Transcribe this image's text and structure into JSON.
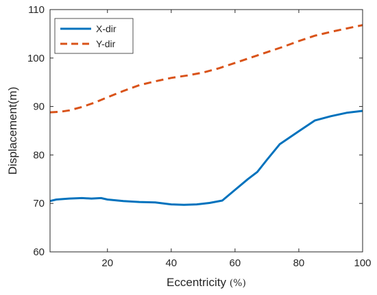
{
  "chart_data": {
    "type": "line",
    "xlabel": "Eccentricity",
    "xlabel_unit": "(%)",
    "ylabel": "Displacement(m)",
    "xlim": [
      2,
      100
    ],
    "ylim": [
      60,
      110
    ],
    "xticks": [
      20,
      40,
      60,
      80,
      100
    ],
    "yticks": [
      60,
      70,
      80,
      90,
      100,
      110
    ],
    "grid": false,
    "legend_position": "top-left",
    "series": [
      {
        "name": "X-dir",
        "color": "#0072BD",
        "style": "solid",
        "x": [
          2,
          4,
          8,
          12,
          15,
          18,
          20,
          25,
          30,
          35,
          40,
          44,
          48,
          52,
          56,
          60,
          64,
          67,
          70,
          74,
          80,
          85,
          90,
          95,
          100
        ],
        "y": [
          70.5,
          70.8,
          71.0,
          71.1,
          71.0,
          71.1,
          70.8,
          70.5,
          70.3,
          70.2,
          69.8,
          69.7,
          69.8,
          70.1,
          70.6,
          72.8,
          75.0,
          76.5,
          79.0,
          82.2,
          84.9,
          87.1,
          88.0,
          88.7,
          89.1
        ]
      },
      {
        "name": "Y-dir",
        "color": "#D95319",
        "style": "dashed",
        "x": [
          2,
          5,
          8,
          12,
          16,
          20,
          25,
          30,
          35,
          40,
          45,
          50,
          55,
          60,
          65,
          70,
          75,
          80,
          85,
          90,
          95,
          100
        ],
        "y": [
          88.8,
          88.9,
          89.2,
          89.9,
          90.8,
          91.9,
          93.2,
          94.4,
          95.2,
          95.9,
          96.4,
          97.0,
          97.9,
          99.0,
          100.1,
          101.2,
          102.3,
          103.5,
          104.6,
          105.4,
          106.1,
          106.8
        ]
      }
    ]
  }
}
